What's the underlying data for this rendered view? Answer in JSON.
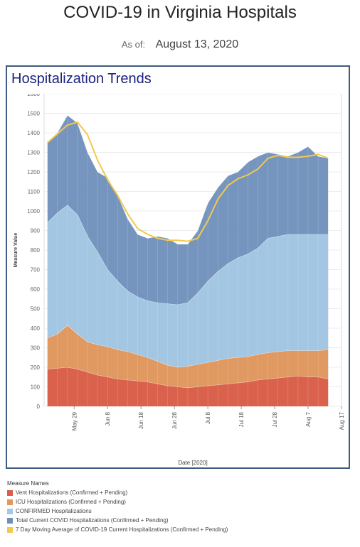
{
  "header": {
    "title": "COVID-19 in Virginia Hospitals",
    "asof_label": "As of:",
    "asof_date": "August 13, 2020"
  },
  "panel": {
    "title": "Hospitalization Trends"
  },
  "chart_data": {
    "type": "area",
    "ylabel": "Measure Value",
    "xlabel": "Date [2020]",
    "ylim": [
      0,
      1600
    ],
    "y_ticks": [
      0,
      100,
      200,
      300,
      400,
      500,
      600,
      700,
      800,
      900,
      1000,
      1100,
      1200,
      1300,
      1400,
      1500,
      1600
    ],
    "x_range": [
      "2020-05-20",
      "2020-08-17"
    ],
    "x_ticks": [
      {
        "date": "2020-05-29",
        "label": "May 29"
      },
      {
        "date": "2020-06-08",
        "label": "Jun 8"
      },
      {
        "date": "2020-06-18",
        "label": "Jun 18"
      },
      {
        "date": "2020-06-28",
        "label": "Jun 28"
      },
      {
        "date": "2020-07-08",
        "label": "Jul 8"
      },
      {
        "date": "2020-07-18",
        "label": "Jul 18"
      },
      {
        "date": "2020-07-28",
        "label": "Jul 28"
      },
      {
        "date": "2020-08-07",
        "label": "Aug 7"
      },
      {
        "date": "2020-08-17",
        "label": "Aug 17"
      }
    ],
    "x": [
      "2020-05-21",
      "2020-05-24",
      "2020-05-27",
      "2020-05-30",
      "2020-06-02",
      "2020-06-05",
      "2020-06-08",
      "2020-06-11",
      "2020-06-14",
      "2020-06-17",
      "2020-06-20",
      "2020-06-23",
      "2020-06-26",
      "2020-06-29",
      "2020-07-02",
      "2020-07-05",
      "2020-07-08",
      "2020-07-11",
      "2020-07-14",
      "2020-07-17",
      "2020-07-20",
      "2020-07-23",
      "2020-07-26",
      "2020-07-29",
      "2020-08-01",
      "2020-08-04",
      "2020-08-07",
      "2020-08-10",
      "2020-08-13"
    ],
    "series": [
      {
        "name": "Vent Hospitalizations (Confirmed + Pending)",
        "color": "#d95f4c",
        "values": [
          190,
          195,
          200,
          190,
          175,
          160,
          150,
          140,
          135,
          130,
          125,
          115,
          105,
          100,
          95,
          100,
          105,
          110,
          115,
          120,
          125,
          135,
          140,
          145,
          150,
          155,
          150,
          150,
          140
        ]
      },
      {
        "name": "ICU Hospitalizations (Confirmed + Pending)",
        "color": "#e3975a",
        "values": [
          350,
          370,
          415,
          370,
          330,
          315,
          305,
          290,
          280,
          265,
          250,
          230,
          210,
          200,
          205,
          215,
          225,
          235,
          245,
          250,
          255,
          265,
          275,
          280,
          285,
          285,
          285,
          285,
          290
        ]
      },
      {
        "name": "CONFIRMED Hospitalizations",
        "color": "#a5c8e4",
        "values": [
          940,
          990,
          1030,
          980,
          870,
          790,
          700,
          640,
          590,
          560,
          540,
          530,
          525,
          520,
          530,
          580,
          640,
          690,
          730,
          760,
          780,
          810,
          860,
          870,
          880,
          880,
          880,
          880,
          880
        ]
      },
      {
        "name": "Total Current COVID Hospitalizations (Confirmed + Pending)",
        "color": "#6f8fba",
        "values": [
          1350,
          1400,
          1490,
          1450,
          1300,
          1200,
          1170,
          1080,
          960,
          880,
          860,
          870,
          860,
          830,
          830,
          900,
          1040,
          1120,
          1180,
          1200,
          1250,
          1280,
          1300,
          1290,
          1280,
          1300,
          1330,
          1280,
          1270
        ]
      },
      {
        "name": "7 Day Moving Average of COVID-19 Current Hospitalizations (Confirmed + Pending)",
        "color": "#f2c94c",
        "values": [
          1350,
          1395,
          1440,
          1455,
          1390,
          1260,
          1160,
          1080,
          985,
          910,
          880,
          860,
          850,
          850,
          845,
          860,
          950,
          1060,
          1130,
          1165,
          1185,
          1215,
          1270,
          1285,
          1275,
          1275,
          1280,
          1290,
          1270
        ]
      }
    ],
    "legend_title": "Measure Names",
    "legend_position": "bottom"
  }
}
